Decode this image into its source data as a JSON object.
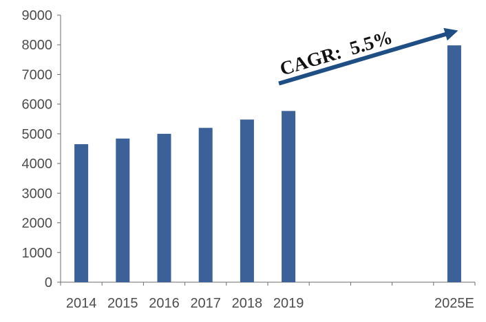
{
  "chart_data": {
    "type": "bar",
    "categories": [
      "2014",
      "2015",
      "2016",
      "2017",
      "2018",
      "2019",
      "",
      "",
      "",
      "2025E"
    ],
    "values": [
      4650,
      4840,
      5000,
      5200,
      5480,
      5770,
      null,
      null,
      null,
      7980
    ],
    "ylim": [
      0,
      9000
    ],
    "yticks": [
      "0",
      "1000",
      "2000",
      "3000",
      "4000",
      "5000",
      "6000",
      "7000",
      "8000",
      "9000"
    ],
    "grid": false,
    "legend": "none",
    "annotation": {
      "text": "CAGR:  5.5%",
      "arrow_from_category": "2019",
      "arrow_to_category": "2025E"
    },
    "colors": {
      "bar": "#3b6198",
      "arrow": "#1f4e85",
      "axis": "#6b6b6b",
      "tick_label": "#4d4d4d",
      "annotation_text": "#111111"
    }
  }
}
